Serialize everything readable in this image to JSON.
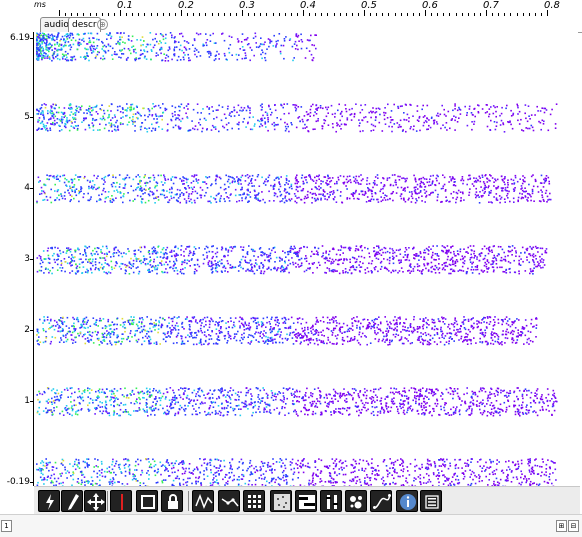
{
  "ruler": {
    "unit": "ms",
    "labels": [
      "0.1",
      "0.2",
      "0.3",
      "0.4",
      "0.5",
      "0.6",
      "0.7",
      "0.8"
    ]
  },
  "tabs": [
    {
      "label": "audio"
    },
    {
      "label": "descr"
    }
  ],
  "tab_add_glyph": "⊕",
  "yaxis": {
    "labels": [
      "6.19",
      "5",
      "4",
      "3",
      "2",
      "1",
      "-0.19"
    ]
  },
  "toolbar": {
    "tools": [
      "thunder-tool",
      "pencil-tool",
      "move-tool",
      "cursor-tool",
      "selection-tool",
      "lock-tool",
      "breakpoint-tool",
      "line-tool",
      "grid-tool",
      "scatter-tool",
      "piano-roll-tool",
      "slider-tool",
      "bubble-tool",
      "curve-tool",
      "info-tool",
      "list-tool"
    ]
  },
  "statusbar": {
    "left": "1",
    "right": [
      "⊞",
      "⊟"
    ]
  },
  "colors": {
    "purple": "#8000ee",
    "violet": "#6a1aff",
    "blue": "#2a3cff",
    "cyan": "#22ccee",
    "green": "#33ee55",
    "yellow": "#dddd33"
  }
}
